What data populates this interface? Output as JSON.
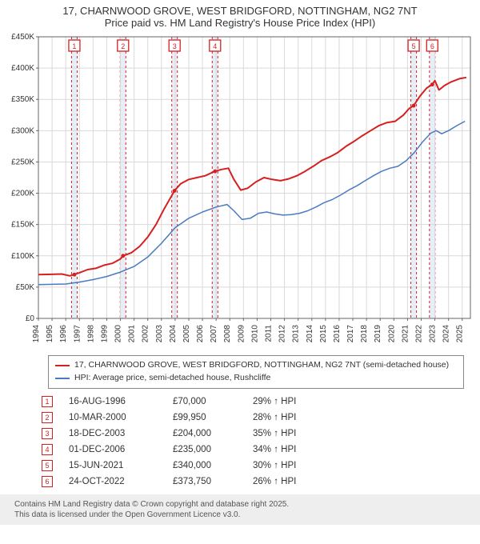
{
  "title_line1": "17, CHARNWOOD GROVE, WEST BRIDGFORD, NOTTINGHAM, NG2 7NT",
  "title_line2": "Price paid vs. HM Land Registry's House Price Index (HPI)",
  "chart": {
    "type": "line",
    "x_start_year": 1994,
    "x_end_year": 2025,
    "y_min": 0,
    "y_max": 450000,
    "y_tick_step": 50000,
    "y_tick_labels": [
      "£0",
      "£50K",
      "£100K",
      "£150K",
      "£200K",
      "£250K",
      "£300K",
      "£350K",
      "£400K",
      "£450K"
    ],
    "x_tick_years": [
      1994,
      1995,
      1996,
      1997,
      1998,
      1999,
      2000,
      2001,
      2002,
      2003,
      2004,
      2005,
      2006,
      2007,
      2008,
      2009,
      2010,
      2011,
      2012,
      2013,
      2014,
      2015,
      2016,
      2017,
      2018,
      2019,
      2020,
      2021,
      2022,
      2023,
      2024,
      2025
    ],
    "background_color": "#ffffff",
    "grid_color": "#d9d9d9",
    "axis_color": "#666666",
    "label_fontsize": 10,
    "marker_box_border": "#d62020",
    "marker_band_fill": "#d3e0f0",
    "marker_band_opacity": 0.55,
    "marker_dash": "3,3",
    "series": [
      {
        "name": "price-paid",
        "color": "#d62020",
        "width": 2,
        "data": [
          [
            1994.0,
            70000
          ],
          [
            1995.0,
            70500
          ],
          [
            1995.7,
            71000
          ],
          [
            1996.3,
            68000
          ],
          [
            1996.6,
            70000
          ],
          [
            1997.0,
            73000
          ],
          [
            1997.6,
            78000
          ],
          [
            1998.2,
            80000
          ],
          [
            1998.8,
            85000
          ],
          [
            1999.4,
            88000
          ],
          [
            2000.0,
            95000
          ],
          [
            2000.2,
            99950
          ],
          [
            2000.8,
            105000
          ],
          [
            2001.4,
            115000
          ],
          [
            2002.0,
            130000
          ],
          [
            2002.6,
            150000
          ],
          [
            2003.2,
            175000
          ],
          [
            2003.96,
            204000
          ],
          [
            2004.4,
            215000
          ],
          [
            2005.0,
            222000
          ],
          [
            2005.6,
            225000
          ],
          [
            2006.2,
            228000
          ],
          [
            2006.9,
            235000
          ],
          [
            2007.4,
            238000
          ],
          [
            2007.9,
            240000
          ],
          [
            2008.3,
            222000
          ],
          [
            2008.8,
            205000
          ],
          [
            2009.3,
            208000
          ],
          [
            2009.9,
            218000
          ],
          [
            2010.5,
            225000
          ],
          [
            2011.1,
            222000
          ],
          [
            2011.7,
            220000
          ],
          [
            2012.3,
            223000
          ],
          [
            2012.9,
            228000
          ],
          [
            2013.5,
            235000
          ],
          [
            2014.1,
            243000
          ],
          [
            2014.7,
            252000
          ],
          [
            2015.3,
            258000
          ],
          [
            2015.9,
            265000
          ],
          [
            2016.5,
            275000
          ],
          [
            2017.1,
            283000
          ],
          [
            2017.7,
            292000
          ],
          [
            2018.3,
            300000
          ],
          [
            2018.9,
            308000
          ],
          [
            2019.5,
            313000
          ],
          [
            2020.1,
            315000
          ],
          [
            2020.7,
            325000
          ],
          [
            2021.1,
            335000
          ],
          [
            2021.45,
            340000
          ],
          [
            2021.9,
            355000
          ],
          [
            2022.4,
            368000
          ],
          [
            2022.81,
            373750
          ],
          [
            2023.0,
            380000
          ],
          [
            2023.3,
            365000
          ],
          [
            2023.7,
            372000
          ],
          [
            2024.2,
            378000
          ],
          [
            2024.8,
            383000
          ],
          [
            2025.3,
            385000
          ]
        ]
      },
      {
        "name": "hpi",
        "color": "#4a7bc0",
        "width": 1.5,
        "data": [
          [
            1994.0,
            54000
          ],
          [
            1995.0,
            54500
          ],
          [
            1996.0,
            55000
          ],
          [
            1997.0,
            58000
          ],
          [
            1998.0,
            62000
          ],
          [
            1999.0,
            67000
          ],
          [
            2000.0,
            74000
          ],
          [
            2001.0,
            83000
          ],
          [
            2002.0,
            98000
          ],
          [
            2003.0,
            120000
          ],
          [
            2004.0,
            145000
          ],
          [
            2005.0,
            160000
          ],
          [
            2006.0,
            170000
          ],
          [
            2007.0,
            178000
          ],
          [
            2007.8,
            182000
          ],
          [
            2008.3,
            172000
          ],
          [
            2008.9,
            158000
          ],
          [
            2009.5,
            160000
          ],
          [
            2010.1,
            168000
          ],
          [
            2010.7,
            170000
          ],
          [
            2011.3,
            167000
          ],
          [
            2011.9,
            165000
          ],
          [
            2012.5,
            166000
          ],
          [
            2013.1,
            168000
          ],
          [
            2013.7,
            172000
          ],
          [
            2014.3,
            178000
          ],
          [
            2014.9,
            185000
          ],
          [
            2015.5,
            190000
          ],
          [
            2016.1,
            197000
          ],
          [
            2016.7,
            205000
          ],
          [
            2017.3,
            212000
          ],
          [
            2017.9,
            220000
          ],
          [
            2018.5,
            228000
          ],
          [
            2019.1,
            235000
          ],
          [
            2019.7,
            240000
          ],
          [
            2020.3,
            243000
          ],
          [
            2020.9,
            252000
          ],
          [
            2021.5,
            265000
          ],
          [
            2022.1,
            282000
          ],
          [
            2022.7,
            296000
          ],
          [
            2023.1,
            300000
          ],
          [
            2023.5,
            295000
          ],
          [
            2024.0,
            300000
          ],
          [
            2024.6,
            308000
          ],
          [
            2025.2,
            315000
          ]
        ]
      }
    ],
    "markers": [
      {
        "n": 1,
        "year": 1996.63
      },
      {
        "n": 2,
        "year": 2000.19
      },
      {
        "n": 3,
        "year": 2003.96
      },
      {
        "n": 4,
        "year": 2006.92
      },
      {
        "n": 5,
        "year": 2021.45
      },
      {
        "n": 6,
        "year": 2022.81
      }
    ]
  },
  "legend": [
    {
      "color": "#d62020",
      "label": "17, CHARNWOOD GROVE, WEST BRIDGFORD, NOTTINGHAM, NG2 7NT (semi-detached house)"
    },
    {
      "color": "#4a7bc0",
      "label": "HPI: Average price, semi-detached house, Rushcliffe"
    }
  ],
  "sales": [
    {
      "n": 1,
      "date": "16-AUG-1996",
      "price": "£70,000",
      "delta": "29% ↑ HPI"
    },
    {
      "n": 2,
      "date": "10-MAR-2000",
      "price": "£99,950",
      "delta": "28% ↑ HPI"
    },
    {
      "n": 3,
      "date": "18-DEC-2003",
      "price": "£204,000",
      "delta": "35% ↑ HPI"
    },
    {
      "n": 4,
      "date": "01-DEC-2006",
      "price": "£235,000",
      "delta": "34% ↑ HPI"
    },
    {
      "n": 5,
      "date": "15-JUN-2021",
      "price": "£340,000",
      "delta": "30% ↑ HPI"
    },
    {
      "n": 6,
      "date": "24-OCT-2022",
      "price": "£373,750",
      "delta": "26% ↑ HPI"
    }
  ],
  "footer_line1": "Contains HM Land Registry data © Crown copyright and database right 2025.",
  "footer_line2": "This data is licensed under the Open Government Licence v3.0."
}
